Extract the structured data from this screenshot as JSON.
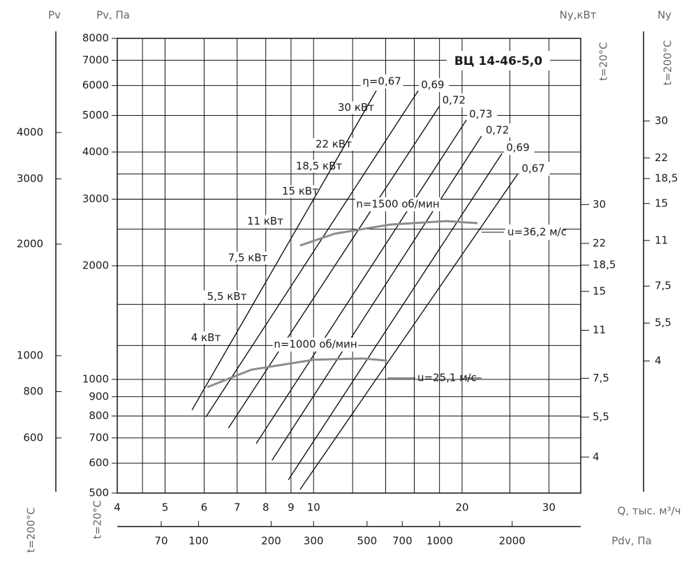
{
  "chart_data": {
    "type": "line",
    "title": "ВЦ 14-46-5,0",
    "xscale": "log",
    "yscale": "log",
    "xlabel": "Q, тыс. м³/ч",
    "ylabel": "Pv, Па",
    "xlim": [
      4,
      34.8
    ],
    "xticks": [
      4,
      5,
      6,
      7,
      8,
      9,
      10,
      20,
      30
    ],
    "xminor": [
      4.5,
      12,
      14,
      16,
      18,
      25
    ],
    "ylim": [
      500,
      8000
    ],
    "yticks": [
      500,
      600,
      700,
      800,
      900,
      1000,
      2000,
      3000,
      4000,
      5000,
      6000,
      7000,
      8000
    ],
    "x2label": "Pdv, Па",
    "x2lim": [
      46,
      3850
    ],
    "x2ticks": [
      70,
      100,
      200,
      300,
      500,
      700,
      1000,
      2000
    ],
    "yleft_label": "Pv",
    "yleft_temp": "t=200°C",
    "yleft_lim": [
      426,
      7180
    ],
    "yleft_ticks": [
      4000,
      3000,
      2000,
      1000,
      800,
      600
    ],
    "ylabel_temp": "t=20°C",
    "y2label": "Nу,кВт",
    "y2_temp": "t=20°C",
    "y2lim": [
      3.0,
      113
    ],
    "y2ticks": [
      30,
      22,
      {
        "value": 18.5,
        "label": "18,5"
      },
      15,
      11,
      {
        "value": 7.5,
        "label": "7,5"
      },
      {
        "value": 5.5,
        "label": "5,5"
      },
      4
    ],
    "y3label": "Nу",
    "y3_temp": "t=200°C",
    "y3lim": [
      1.32,
      60
    ],
    "y3ticks": [
      30,
      22,
      {
        "value": 18.5,
        "label": "18,5"
      },
      15,
      11,
      {
        "value": 7.5,
        "label": "7,5"
      },
      {
        "value": 5.5,
        "label": "5,5"
      },
      4
    ],
    "hlines": [
      {
        "name": "30 кВт",
        "y": 5000
      },
      {
        "name": "22 кВт",
        "y": 4000
      },
      {
        "name": "18,5 кВт",
        "y": 3500
      },
      {
        "name": "15 кВт",
        "y": 3000
      },
      {
        "name": "11 кВт",
        "y": 2500
      },
      {
        "name": "7,5 кВт",
        "y": 2000
      },
      {
        "name": "5,5 кВт",
        "y": 1580
      },
      {
        "name": "4 кВт",
        "y": 1230
      }
    ],
    "series": [
      {
        "name": "η=0,67",
        "color": "#111111",
        "x": [
          5.67,
          13.4
        ],
        "y": [
          830,
          5816
        ]
      },
      {
        "name": "0,69",
        "color": "#111111",
        "x": [
          6.05,
          16.3
        ],
        "y": [
          795,
          5816
        ]
      },
      {
        "name": "0,72",
        "color": "#111111",
        "x": [
          6.72,
          18.0
        ],
        "y": [
          743,
          5296
        ]
      },
      {
        "name": "0,73",
        "color": "#111111",
        "x": [
          7.65,
          20.4
        ],
        "y": [
          676,
          4862
        ]
      },
      {
        "name": "0,72",
        "color": "#111111",
        "x": [
          8.24,
          21.9
        ],
        "y": [
          611,
          4410
        ]
      },
      {
        "name": "0,69",
        "color": "#111111",
        "x": [
          8.89,
          24.1
        ],
        "y": [
          542,
          3966
        ]
      },
      {
        "name": "0,67",
        "color": "#111111",
        "x": [
          9.39,
          25.9
        ],
        "y": [
          511,
          3491
        ]
      },
      {
        "name": "n=1500 об/мин",
        "color": "#8c8c8c",
        "x": [
          9.39,
          11.05,
          14.3,
          18.6,
          21.5
        ],
        "y": [
          2262,
          2432,
          2570,
          2626,
          2592
        ]
      },
      {
        "name": "n=1000 об/мин",
        "color": "#8c8c8c",
        "x": [
          6.09,
          7.48,
          10.0,
          12.6,
          14.1
        ],
        "y": [
          954,
          1061,
          1127,
          1136,
          1121
        ]
      }
    ],
    "annotations": [
      "u=36,2 м/с",
      "u=25,1 м/с"
    ]
  }
}
